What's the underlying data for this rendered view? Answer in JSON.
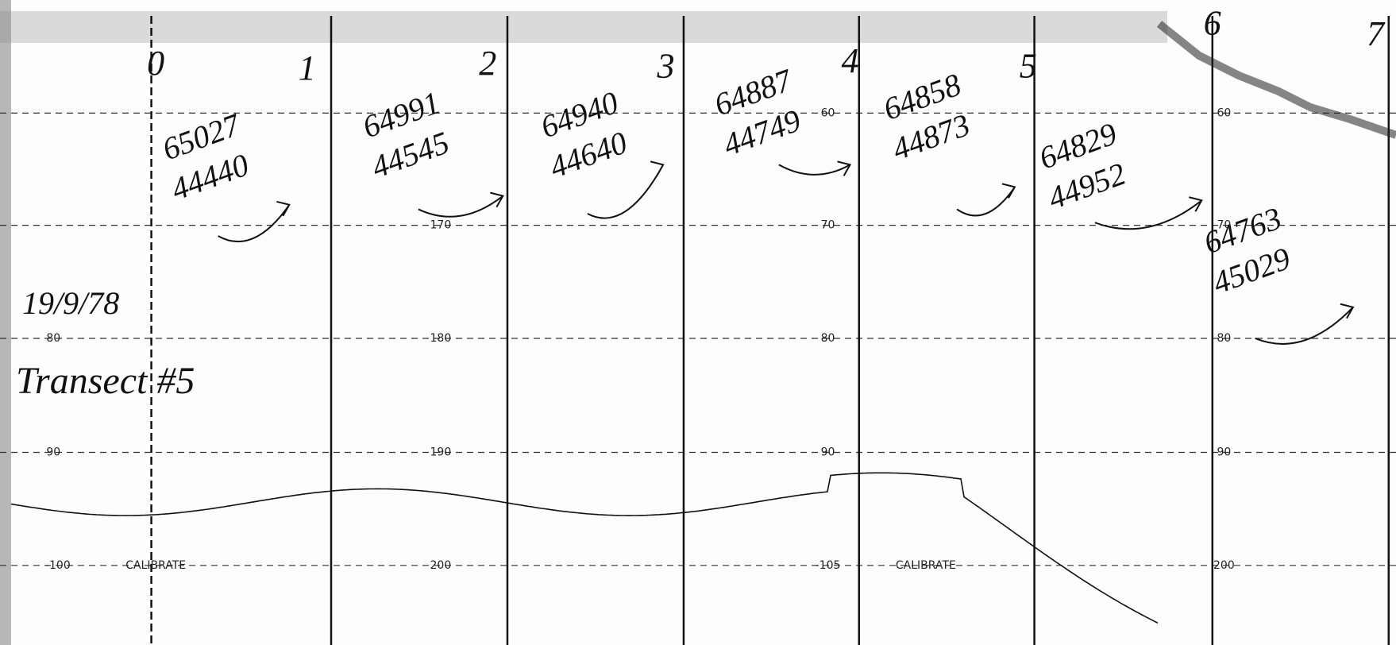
{
  "record": {
    "title": "Transect #5",
    "date": "19/9/78",
    "fixes": [
      "0",
      "1",
      "2",
      "3",
      "4",
      "5",
      "6",
      "7"
    ],
    "positions": [
      {
        "easting": "65027",
        "northing": "44440"
      },
      {
        "easting": "64991",
        "northing": "44545"
      },
      {
        "easting": "64940",
        "northing": "44640"
      },
      {
        "easting": "64887",
        "northing": "44749"
      },
      {
        "easting": "64858",
        "northing": "44873"
      },
      {
        "easting": "64829",
        "northing": "44952"
      },
      {
        "easting": "64763",
        "northing": "45029"
      }
    ],
    "scale_labels": [
      "80",
      "90",
      "-100",
      "170",
      "180",
      "190",
      "200",
      "60",
      "70",
      "80",
      "90",
      "-105",
      "60",
      "70",
      "80",
      "90",
      "200"
    ],
    "calibrate": [
      "CALIBRATE",
      "CALIBRATE"
    ]
  }
}
